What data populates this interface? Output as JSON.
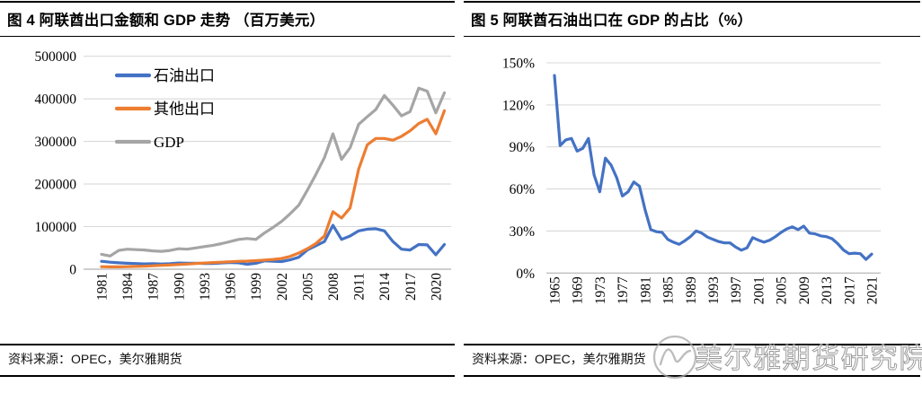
{
  "panels": [
    {
      "figure_title": "图 4 阿联酋出口金额和 GDP 走势 （百万美元）",
      "source_note": "资料来源：OPEC，美尔雅期货"
    },
    {
      "figure_title": "图 5 阿联酋石油出口在 GDP 的占比（%）",
      "source_note": "资料来源：OPEC，美尔雅期货"
    }
  ],
  "watermark": {
    "text": "美尔雅期货研究院",
    "logo_icon": "meiya-futures-circle-logo"
  },
  "colors": {
    "oil_blue": "#4472C4",
    "other_orange": "#ED7D31",
    "gdp_gray": "#A5A5A5",
    "gridline": "#D9D9D9",
    "axis_line": "#BFBFBF",
    "rule_black": "#000000",
    "watermark_gray": "#9A9A9A"
  },
  "chart_data": [
    {
      "type": "line",
      "title": "图 4 阿联酋出口金额和 GDP 走势 （百万美元）",
      "xlabel": "",
      "ylabel": "",
      "x_range": [
        1981,
        2021
      ],
      "x_tick_labels": [
        "1981",
        "1984",
        "1987",
        "1990",
        "1993",
        "1996",
        "1999",
        "2002",
        "2005",
        "2008",
        "2011",
        "2014",
        "2017",
        "2020"
      ],
      "ylim": [
        0,
        500000
      ],
      "y_ticks": [
        0,
        100000,
        200000,
        300000,
        400000,
        500000
      ],
      "y_tick_labels": [
        "0",
        "100000",
        "200000",
        "300000",
        "400000",
        "500000"
      ],
      "grid": "horizontal",
      "legend_position": "inside-top-left",
      "series": [
        {
          "name": "石油出口",
          "color": "#4472C4",
          "values": [
            18500,
            16500,
            15000,
            14000,
            13200,
            12500,
            12800,
            12300,
            13000,
            14500,
            14000,
            14200,
            13500,
            13200,
            14800,
            15500,
            15000,
            11500,
            14000,
            19500,
            18500,
            18000,
            22000,
            28000,
            45000,
            55000,
            65000,
            103000,
            70000,
            78000,
            90000,
            94000,
            95000,
            90000,
            65000,
            47000,
            45000,
            58000,
            57000,
            34000,
            58000
          ]
        },
        {
          "name": "其他出口",
          "color": "#ED7D31",
          "values": [
            6000,
            5500,
            5500,
            6000,
            6500,
            7000,
            8000,
            9000,
            10000,
            11000,
            12000,
            13500,
            14500,
            15500,
            16500,
            17500,
            18500,
            19000,
            20000,
            21500,
            23000,
            25000,
            30000,
            38000,
            48000,
            60000,
            78000,
            135000,
            120000,
            144000,
            235000,
            292000,
            307000,
            307000,
            303000,
            312000,
            325000,
            342000,
            352000,
            318000,
            372000
          ]
        },
        {
          "name": "GDP",
          "color": "#A5A5A5",
          "values": [
            35000,
            31000,
            44000,
            47000,
            46000,
            45000,
            43000,
            42000,
            44000,
            48000,
            47000,
            50000,
            53000,
            56000,
            60000,
            65000,
            70000,
            72000,
            70000,
            85000,
            98000,
            112000,
            130000,
            150000,
            185000,
            222000,
            262000,
            318000,
            258000,
            285000,
            340000,
            358000,
            375000,
            408000,
            385000,
            360000,
            370000,
            425000,
            418000,
            367000,
            414000
          ]
        }
      ]
    },
    {
      "type": "line",
      "title": "图 5 阿联酋石油出口在 GDP 的占比（%）",
      "xlabel": "",
      "ylabel": "",
      "x_range": [
        1965,
        2021
      ],
      "x_tick_labels": [
        "1965",
        "1969",
        "1973",
        "1977",
        "1981",
        "1985",
        "1989",
        "1993",
        "1997",
        "2001",
        "2005",
        "2009",
        "2013",
        "2017",
        "2021"
      ],
      "ylim": [
        0,
        150
      ],
      "y_ticks": [
        0,
        30,
        60,
        90,
        120,
        150
      ],
      "y_tick_labels": [
        "0%",
        "30%",
        "60%",
        "90%",
        "120%",
        "150%"
      ],
      "grid": "horizontal",
      "legend_position": "none",
      "series": [
        {
          "name": "石油出口/GDP",
          "color": "#4472C4",
          "values": [
            141,
            91,
            95,
            96,
            87,
            89,
            96,
            70,
            58,
            82,
            77,
            68,
            55,
            58,
            65,
            62,
            45,
            31,
            29.5,
            29,
            24,
            22,
            20.5,
            23,
            26,
            30,
            28.5,
            25.7,
            24,
            22.5,
            21.5,
            21.5,
            18.5,
            16.3,
            18,
            25.3,
            23.5,
            22,
            23.5,
            26,
            29,
            31.5,
            33,
            31,
            33.5,
            28.5,
            28,
            26.5,
            26,
            24.5,
            21,
            16.5,
            13.8,
            14.2,
            13.8,
            9.7,
            13.5
          ]
        }
      ]
    }
  ]
}
